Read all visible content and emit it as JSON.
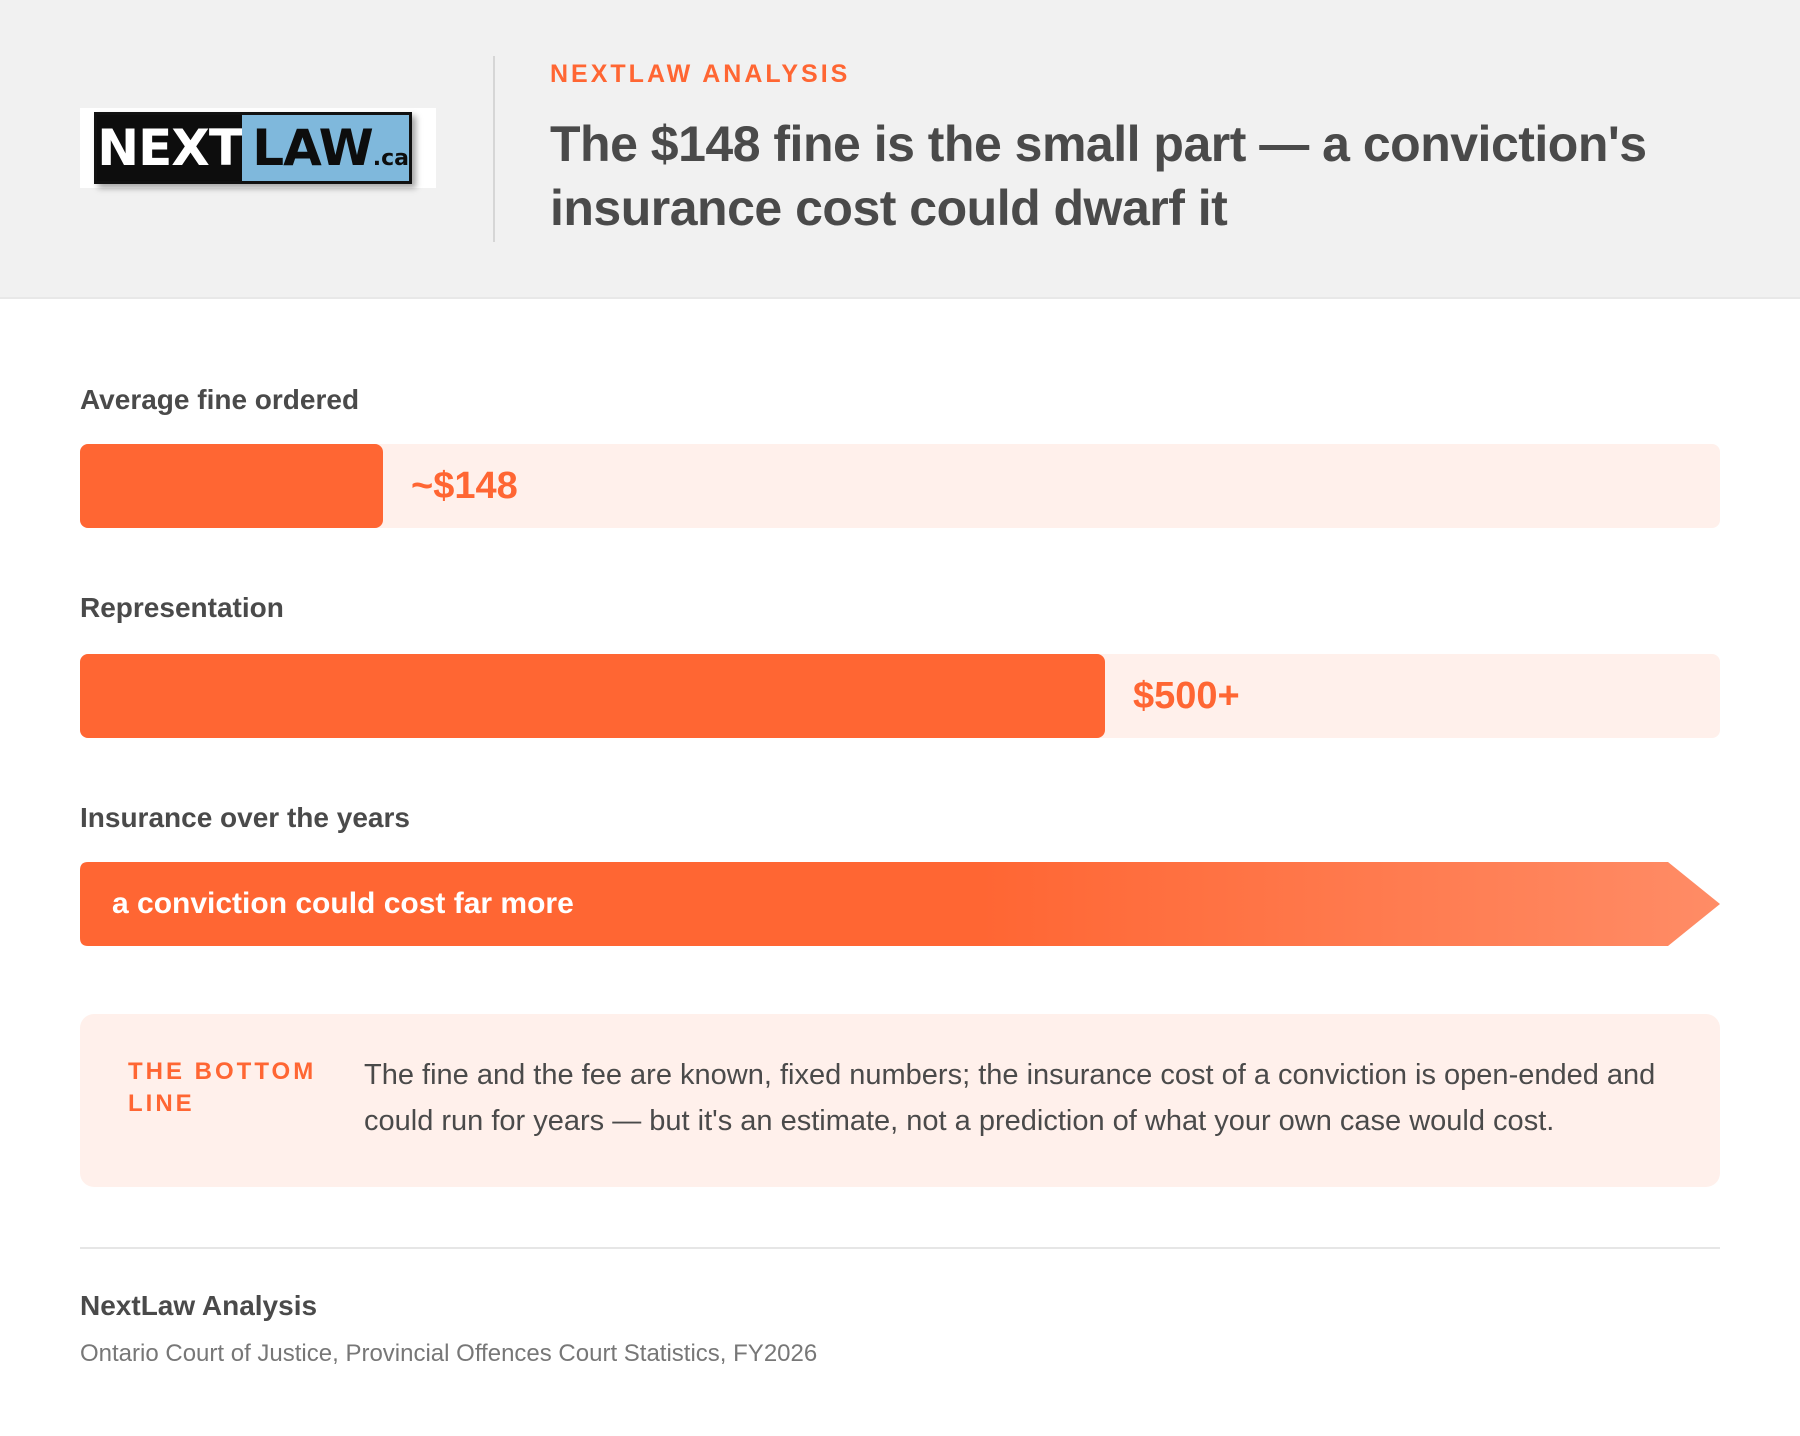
{
  "header": {
    "logo": {
      "next": "NEXT",
      "law": "LAW",
      "tld": ".ca"
    },
    "eyebrow": "NEXTLAW ANALYSIS",
    "title": "The $148 fine is the small part — a conviction's insurance cost could dwarf it"
  },
  "chart_data": {
    "type": "bar",
    "orientation": "horizontal",
    "max": 800,
    "categories": [
      "Average fine ordered",
      "Representation",
      "Insurance over the years"
    ],
    "values": [
      148,
      500,
      null
    ],
    "value_labels": [
      "~$148",
      "$500+",
      "a conviction could cost far more"
    ],
    "open_ended": [
      false,
      false,
      true
    ],
    "colors": {
      "fill": "#ff6633",
      "track": "#fff0eb",
      "arrow_end": "#ff8c66"
    }
  },
  "callout": {
    "label": "THE BOTTOM LINE",
    "text": "The fine and the fee are known, fixed numbers; the insurance cost of a conviction is open-ended and could run for years — but it's an estimate, not a prediction of what your own case would cost."
  },
  "source": {
    "name": "NextLaw Analysis",
    "detail": "Ontario Court of Justice, Provincial Offences Court Statistics, FY2026"
  }
}
